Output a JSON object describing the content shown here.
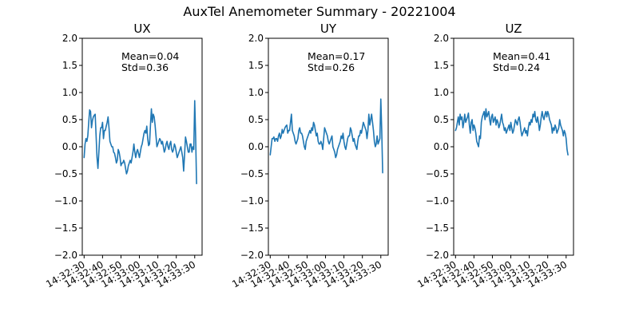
{
  "suptitle": "AuxTel Anemometer Summary - 20221004",
  "chart_data": [
    {
      "type": "line",
      "title": "UX",
      "xlabel": "",
      "ylabel": "",
      "ylim": [
        -2.0,
        2.0
      ],
      "yticks": [
        -2.0,
        -1.5,
        -1.0,
        -0.5,
        0.0,
        0.5,
        1.0,
        1.5,
        2.0
      ],
      "ytick_labels": [
        "−2.0",
        "−1.5",
        "−1.0",
        "−0.5",
        "0.0",
        "0.5",
        "1.0",
        "1.5",
        "2.0"
      ],
      "xlim": [
        "14:32:29",
        "14:33:34"
      ],
      "xtick_labels": [
        "14:32:30",
        "14:32:40",
        "14:32:50",
        "14:33:00",
        "14:33:10",
        "14:33:20",
        "14:33:30"
      ],
      "grid": false,
      "color": "#1f77b4",
      "annotation": [
        "Mean=0.04",
        "Std=0.36"
      ],
      "x": [
        "14:32:30",
        "14:32:30.5",
        "14:32:31",
        "14:32:31.5",
        "14:32:32",
        "14:32:32.5",
        "14:32:33",
        "14:32:33.5",
        "14:32:34",
        "14:32:34.5",
        "14:32:35",
        "14:32:35.5",
        "14:32:36",
        "14:32:36.5",
        "14:32:37",
        "14:32:37.5",
        "14:32:38",
        "14:32:38.5",
        "14:32:39",
        "14:32:39.5",
        "14:32:40",
        "14:32:40.5",
        "14:32:41",
        "14:32:41.5",
        "14:32:42",
        "14:32:42.5",
        "14:32:43",
        "14:32:43.5",
        "14:32:44",
        "14:32:44.5",
        "14:32:45",
        "14:32:45.5",
        "14:32:46",
        "14:32:46.5",
        "14:32:47",
        "14:32:47.5",
        "14:32:48",
        "14:32:48.5",
        "14:32:49",
        "14:32:49.5",
        "14:32:50",
        "14:32:50.5",
        "14:32:51",
        "14:32:51.5",
        "14:32:52",
        "14:32:52.5",
        "14:32:53",
        "14:32:53.5",
        "14:32:54",
        "14:32:54.5",
        "14:32:55",
        "14:32:55.5",
        "14:32:56",
        "14:32:56.5",
        "14:32:57",
        "14:32:57.5",
        "14:32:58",
        "14:32:58.5",
        "14:32:59",
        "14:32:59.5",
        "14:33:00",
        "14:33:00.5",
        "14:33:01",
        "14:33:01.5",
        "14:33:02",
        "14:33:02.5",
        "14:33:03",
        "14:33:03.5",
        "14:33:04",
        "14:33:04.5",
        "14:33:05",
        "14:33:05.5",
        "14:33:06",
        "14:33:06.5",
        "14:33:07",
        "14:33:07.5",
        "14:33:08",
        "14:33:08.5",
        "14:33:09",
        "14:33:09.5",
        "14:33:10",
        "14:33:10.5",
        "14:33:11",
        "14:33:11.5",
        "14:33:12",
        "14:33:12.5",
        "14:33:13",
        "14:33:13.5",
        "14:33:14",
        "14:33:14.5",
        "14:33:15",
        "14:33:15.5",
        "14:33:16",
        "14:33:16.5",
        "14:33:17",
        "14:33:17.5",
        "14:33:18",
        "14:33:18.5",
        "14:33:19",
        "14:33:19.5",
        "14:33:20",
        "14:33:20.5",
        "14:33:21",
        "14:33:21.5",
        "14:33:22",
        "14:33:22.5",
        "14:33:23",
        "14:33:23.5",
        "14:33:24",
        "14:33:24.5",
        "14:33:25",
        "14:33:25.5",
        "14:33:26",
        "14:33:26.5",
        "14:33:27",
        "14:33:27.5",
        "14:33:28",
        "14:33:28.5",
        "14:33:29",
        "14:33:29.5",
        "14:33:30",
        "14:33:30.5",
        "14:33:31"
      ],
      "y": [
        -0.2,
        0.05,
        0.15,
        0.1,
        0.2,
        0.45,
        0.68,
        0.65,
        0.35,
        0.48,
        0.55,
        0.58,
        0.6,
        0.2,
        -0.2,
        -0.4,
        -0.1,
        0.2,
        0.35,
        0.35,
        0.45,
        0.15,
        0.3,
        0.3,
        0.38,
        0.45,
        0.55,
        0.35,
        0.1,
        0.05,
        0.0,
        0.0,
        -0.1,
        -0.12,
        -0.2,
        -0.3,
        -0.25,
        -0.05,
        -0.1,
        -0.2,
        -0.35,
        -0.3,
        -0.3,
        -0.25,
        -0.3,
        -0.4,
        -0.5,
        -0.45,
        -0.35,
        -0.3,
        -0.25,
        -0.3,
        -0.2,
        -0.1,
        0.05,
        -0.1,
        -0.2,
        -0.1,
        -0.05,
        -0.12,
        -0.2,
        -0.1,
        0.0,
        0.05,
        0.15,
        0.25,
        0.3,
        0.25,
        0.38,
        0.15,
        0.02,
        0.05,
        0.4,
        0.7,
        0.45,
        0.6,
        0.55,
        0.4,
        0.2,
        0.0,
        0.05,
        0.1,
        0.15,
        0.12,
        0.05,
        0.1,
        0.0,
        -0.1,
        -0.05,
        0.05,
        0.1,
        0.0,
        -0.05,
        0.05,
        0.1,
        -0.05,
        -0.1,
        -0.05,
        0.05,
        0.0,
        -0.1,
        -0.2,
        -0.15,
        -0.1,
        -0.05,
        0.0,
        -0.1,
        -0.2,
        -0.45,
        -0.15,
        0.18,
        0.1,
        0.0,
        -0.1,
        -0.1,
        0.05,
        0.05,
        -0.1,
        0.0,
        -0.05,
        0.85,
        0.2,
        -0.68
      ]
    },
    {
      "type": "line",
      "title": "UY",
      "xlabel": "",
      "ylabel": "",
      "ylim": [
        -2.0,
        2.0
      ],
      "yticks": [
        -2.0,
        -1.5,
        -1.0,
        -0.5,
        0.0,
        0.5,
        1.0,
        1.5,
        2.0
      ],
      "ytick_labels": [
        "−2.0",
        "−1.5",
        "−1.0",
        "−0.5",
        "0.0",
        "0.5",
        "1.0",
        "1.5",
        "2.0"
      ],
      "xlim": [
        "14:32:29",
        "14:33:34"
      ],
      "xtick_labels": [
        "14:32:30",
        "14:32:40",
        "14:32:50",
        "14:33:00",
        "14:33:10",
        "14:33:20",
        "14:33:30"
      ],
      "grid": false,
      "color": "#1f77b4",
      "annotation": [
        "Mean=0.17",
        "Std=0.26"
      ],
      "x": [
        "14:32:30",
        "14:32:30.5",
        "14:32:31",
        "14:32:31.5",
        "14:32:32",
        "14:32:32.5",
        "14:32:33",
        "14:32:33.5",
        "14:32:34",
        "14:32:34.5",
        "14:32:35",
        "14:32:35.5",
        "14:32:36",
        "14:32:36.5",
        "14:32:37",
        "14:32:37.5",
        "14:32:38",
        "14:32:38.5",
        "14:32:39",
        "14:32:39.5",
        "14:32:40",
        "14:32:40.5",
        "14:32:41",
        "14:32:41.5",
        "14:32:42",
        "14:32:42.5",
        "14:32:43",
        "14:32:43.5",
        "14:32:44",
        "14:32:44.5",
        "14:32:45",
        "14:32:45.5",
        "14:32:46",
        "14:32:46.5",
        "14:32:47",
        "14:32:47.5",
        "14:32:48",
        "14:32:48.5",
        "14:32:49",
        "14:32:49.5",
        "14:32:50",
        "14:32:50.5",
        "14:32:51",
        "14:32:51.5",
        "14:32:52",
        "14:32:52.5",
        "14:32:53",
        "14:32:53.5",
        "14:32:54",
        "14:32:54.5",
        "14:32:55",
        "14:32:55.5",
        "14:32:56",
        "14:32:56.5",
        "14:32:57",
        "14:32:57.5",
        "14:32:58",
        "14:32:58.5",
        "14:32:59",
        "14:32:59.5",
        "14:33:00",
        "14:33:00.5",
        "14:33:01",
        "14:33:01.5",
        "14:33:02",
        "14:33:02.5",
        "14:33:03",
        "14:33:03.5",
        "14:33:04",
        "14:33:04.5",
        "14:33:05",
        "14:33:05.5",
        "14:33:06",
        "14:33:06.5",
        "14:33:07",
        "14:33:07.5",
        "14:33:08",
        "14:33:08.5",
        "14:33:09",
        "14:33:09.5",
        "14:33:10",
        "14:33:10.5",
        "14:33:11",
        "14:33:11.5",
        "14:33:12",
        "14:33:12.5",
        "14:33:13",
        "14:33:13.5",
        "14:33:14",
        "14:33:14.5",
        "14:33:15",
        "14:33:15.5",
        "14:33:16",
        "14:33:16.5",
        "14:33:17",
        "14:33:17.5",
        "14:33:18",
        "14:33:18.5",
        "14:33:19",
        "14:33:19.5",
        "14:33:20",
        "14:33:20.5",
        "14:33:21",
        "14:33:21.5",
        "14:33:22",
        "14:33:22.5",
        "14:33:23",
        "14:33:23.5",
        "14:33:24",
        "14:33:24.5",
        "14:33:25",
        "14:33:25.5",
        "14:33:26",
        "14:33:26.5",
        "14:33:27",
        "14:33:27.5",
        "14:33:28",
        "14:33:28.5",
        "14:33:29",
        "14:33:29.5",
        "14:33:30",
        "14:33:30.5",
        "14:33:31"
      ],
      "y": [
        -0.15,
        0.0,
        0.15,
        0.15,
        0.18,
        0.1,
        0.15,
        0.15,
        0.1,
        0.2,
        0.25,
        0.15,
        0.2,
        0.32,
        0.25,
        0.3,
        0.35,
        0.38,
        0.4,
        0.25,
        0.3,
        0.3,
        0.45,
        0.6,
        0.3,
        0.25,
        0.2,
        0.1,
        0.05,
        0.1,
        0.15,
        0.3,
        0.35,
        0.25,
        0.25,
        0.2,
        0.1,
        0.0,
        -0.05,
        0.1,
        0.15,
        0.2,
        0.25,
        0.3,
        0.25,
        0.35,
        0.3,
        0.45,
        0.4,
        0.3,
        0.2,
        0.25,
        0.1,
        0.05,
        0.05,
        0.1,
        0.05,
        -0.05,
        0.15,
        0.35,
        0.3,
        0.25,
        0.2,
        0.1,
        0.05,
        0.1,
        0.15,
        0.2,
        0.0,
        -0.05,
        -0.1,
        -0.2,
        -0.15,
        -0.05,
        0.0,
        0.05,
        0.1,
        0.2,
        0.15,
        0.25,
        0.1,
        0.0,
        -0.05,
        0.05,
        0.15,
        0.2,
        0.2,
        0.35,
        0.3,
        0.2,
        0.1,
        0.15,
        0.05,
        0.0,
        -0.05,
        0.1,
        0.2,
        0.2,
        0.3,
        0.25,
        0.35,
        0.45,
        0.4,
        0.35,
        0.3,
        0.15,
        0.3,
        0.6,
        0.4,
        0.5,
        0.6,
        0.45,
        0.3,
        0.1,
        0.0,
        0.05,
        0.2,
        0.05,
        0.1,
        0.15,
        0.88,
        0.3,
        -0.48
      ]
    },
    {
      "type": "line",
      "title": "UZ",
      "xlabel": "",
      "ylabel": "",
      "ylim": [
        -2.0,
        2.0
      ],
      "yticks": [
        -2.0,
        -1.5,
        -1.0,
        -0.5,
        0.0,
        0.5,
        1.0,
        1.5,
        2.0
      ],
      "ytick_labels": [
        "−2.0",
        "−1.5",
        "−1.0",
        "−0.5",
        "0.0",
        "0.5",
        "1.0",
        "1.5",
        "2.0"
      ],
      "xlim": [
        "14:32:29",
        "14:33:34"
      ],
      "xtick_labels": [
        "14:32:30",
        "14:32:40",
        "14:32:50",
        "14:33:00",
        "14:33:10",
        "14:33:20",
        "14:33:30"
      ],
      "grid": false,
      "color": "#1f77b4",
      "annotation": [
        "Mean=0.41",
        "Std=0.24"
      ],
      "x": [
        "14:32:30",
        "14:32:30.5",
        "14:32:31",
        "14:32:31.5",
        "14:32:32",
        "14:32:32.5",
        "14:32:33",
        "14:32:33.5",
        "14:32:34",
        "14:32:34.5",
        "14:32:35",
        "14:32:35.5",
        "14:32:36",
        "14:32:36.5",
        "14:32:37",
        "14:32:37.5",
        "14:32:38",
        "14:32:38.5",
        "14:32:39",
        "14:32:39.5",
        "14:32:40",
        "14:32:40.5",
        "14:32:41",
        "14:32:41.5",
        "14:32:42",
        "14:32:42.5",
        "14:32:43",
        "14:32:43.5",
        "14:32:44",
        "14:32:44.5",
        "14:32:45",
        "14:32:45.5",
        "14:32:46",
        "14:32:46.5",
        "14:32:47",
        "14:32:47.5",
        "14:32:48",
        "14:32:48.5",
        "14:32:49",
        "14:32:49.5",
        "14:32:50",
        "14:32:50.5",
        "14:32:51",
        "14:32:51.5",
        "14:32:52",
        "14:32:52.5",
        "14:32:53",
        "14:32:53.5",
        "14:32:54",
        "14:32:54.5",
        "14:32:55",
        "14:32:55.5",
        "14:32:56",
        "14:32:56.5",
        "14:32:57",
        "14:32:57.5",
        "14:32:58",
        "14:32:58.5",
        "14:32:59",
        "14:32:59.5",
        "14:33:00",
        "14:33:00.5",
        "14:33:01",
        "14:33:01.5",
        "14:33:02",
        "14:33:02.5",
        "14:33:03",
        "14:33:03.5",
        "14:33:04",
        "14:33:04.5",
        "14:33:05",
        "14:33:05.5",
        "14:33:06",
        "14:33:06.5",
        "14:33:07",
        "14:33:07.5",
        "14:33:08",
        "14:33:08.5",
        "14:33:09",
        "14:33:09.5",
        "14:33:10",
        "14:33:10.5",
        "14:33:11",
        "14:33:11.5",
        "14:33:12",
        "14:33:12.5",
        "14:33:13",
        "14:33:13.5",
        "14:33:14",
        "14:33:14.5",
        "14:33:15",
        "14:33:15.5",
        "14:33:16",
        "14:33:16.5",
        "14:33:17",
        "14:33:17.5",
        "14:33:18",
        "14:33:18.5",
        "14:33:19",
        "14:33:19.5",
        "14:33:20",
        "14:33:20.5",
        "14:33:21",
        "14:33:21.5",
        "14:33:22",
        "14:33:22.5",
        "14:33:23",
        "14:33:23.5",
        "14:33:24",
        "14:33:24.5",
        "14:33:25",
        "14:33:25.5",
        "14:33:26",
        "14:33:26.5",
        "14:33:27",
        "14:33:27.5",
        "14:33:28",
        "14:33:28.5",
        "14:33:29",
        "14:33:29.5",
        "14:33:30",
        "14:33:30.5",
        "14:33:31"
      ],
      "y": [
        0.3,
        0.35,
        0.45,
        0.55,
        0.4,
        0.6,
        0.5,
        0.55,
        0.35,
        0.45,
        0.6,
        0.45,
        0.5,
        0.55,
        0.62,
        0.4,
        0.25,
        0.45,
        0.5,
        0.3,
        0.4,
        0.35,
        0.25,
        0.1,
        0.05,
        0.0,
        0.2,
        0.15,
        0.45,
        0.55,
        0.6,
        0.65,
        0.5,
        0.7,
        0.55,
        0.6,
        0.65,
        0.5,
        0.4,
        0.55,
        0.6,
        0.45,
        0.5,
        0.55,
        0.4,
        0.5,
        0.45,
        0.35,
        0.4,
        0.5,
        0.6,
        0.45,
        0.4,
        0.3,
        0.35,
        0.25,
        0.3,
        0.35,
        0.4,
        0.3,
        0.45,
        0.35,
        0.25,
        0.3,
        0.4,
        0.5,
        0.45,
        0.4,
        0.5,
        0.55,
        0.45,
        0.3,
        0.2,
        0.25,
        0.3,
        0.35,
        0.25,
        0.3,
        0.2,
        0.35,
        0.45,
        0.4,
        0.5,
        0.45,
        0.6,
        0.55,
        0.65,
        0.5,
        0.45,
        0.55,
        0.45,
        0.3,
        0.4,
        0.55,
        0.65,
        0.55,
        0.5,
        0.6,
        0.65,
        0.55,
        0.65,
        0.6,
        0.5,
        0.45,
        0.4,
        0.25,
        0.35,
        0.3,
        0.4,
        0.35,
        0.25,
        0.3,
        0.35,
        0.5,
        0.4,
        0.35,
        0.3,
        0.2,
        0.3,
        0.25,
        0.15,
        -0.05,
        -0.15
      ]
    }
  ]
}
